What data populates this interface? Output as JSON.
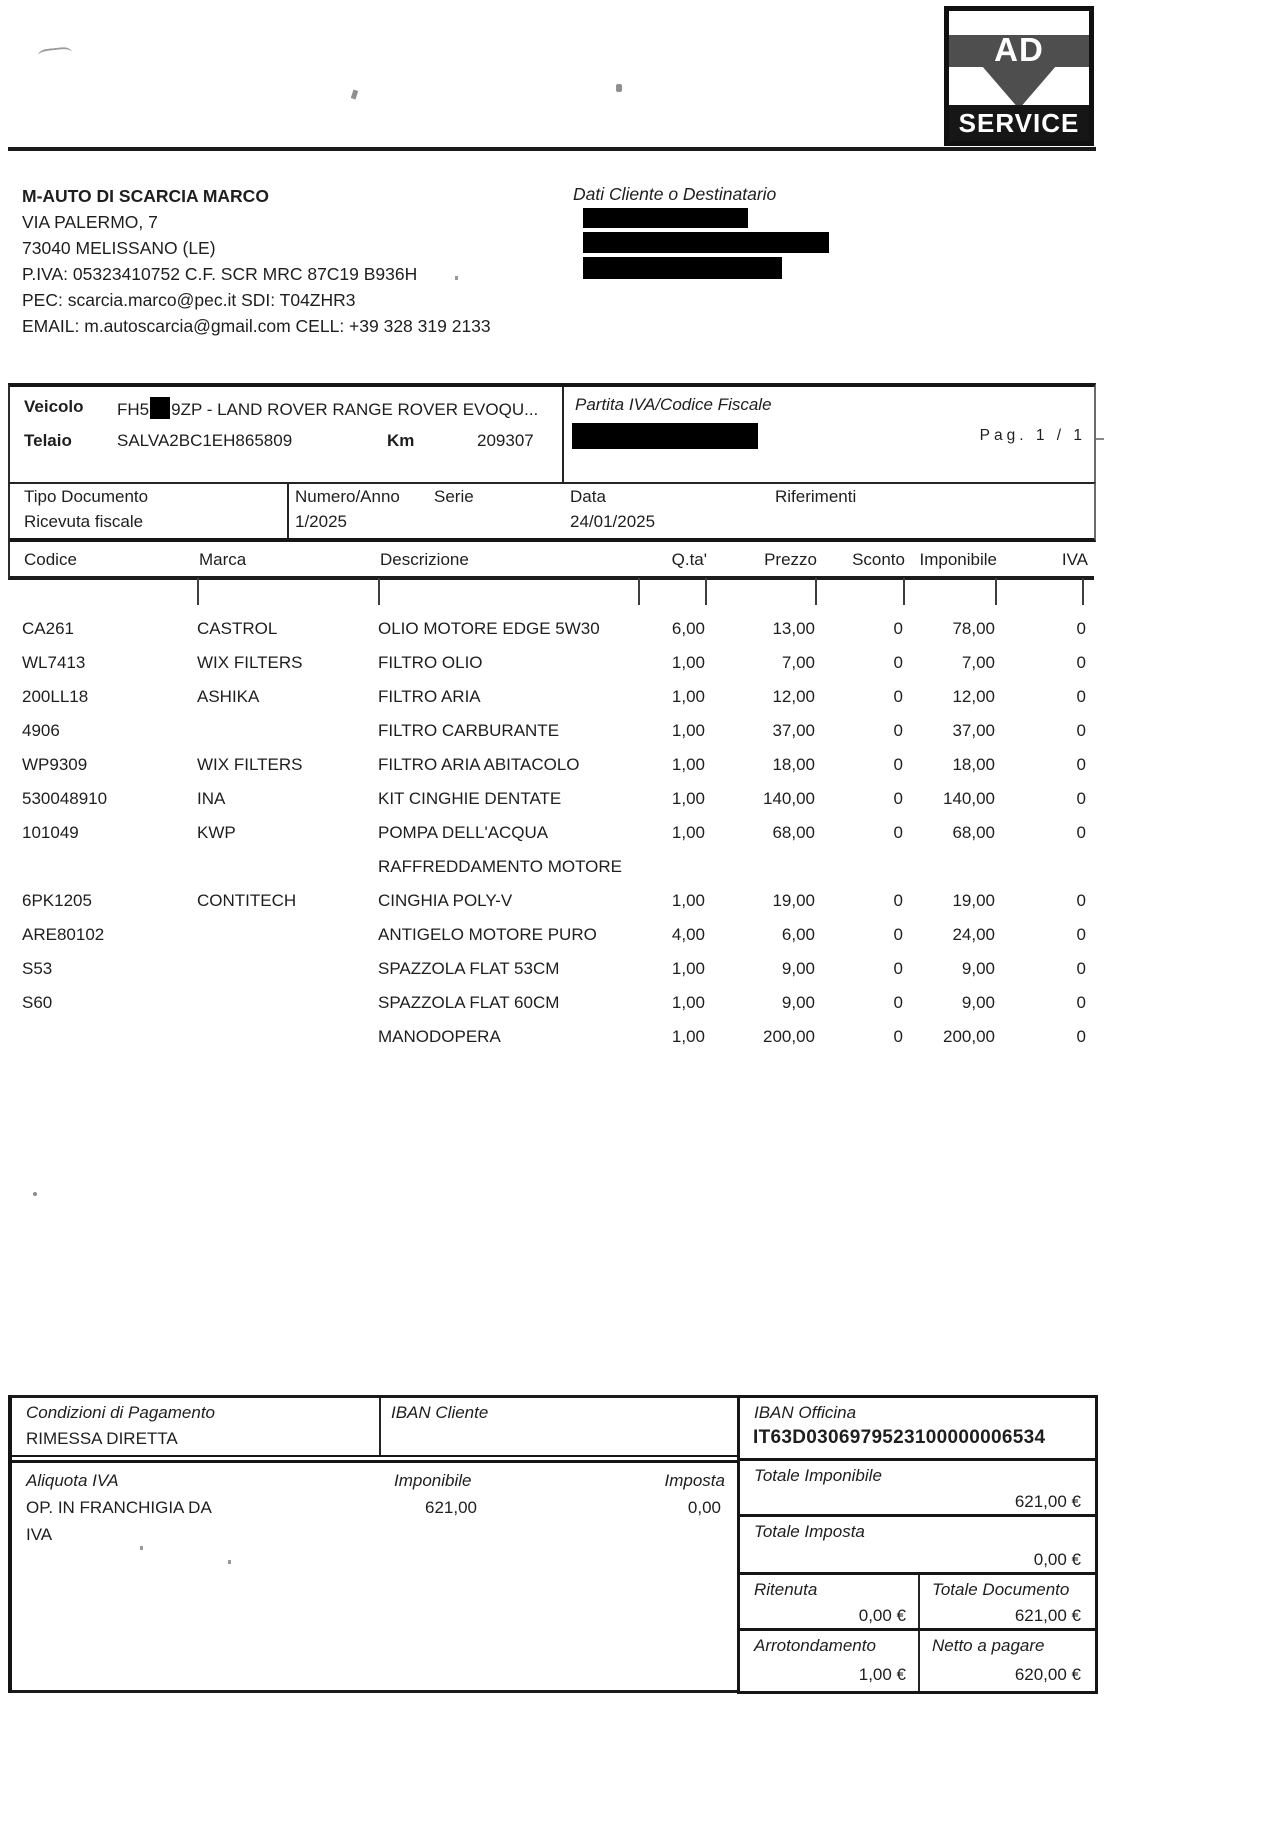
{
  "logo": {
    "ad": "AD",
    "service": "SERVICE"
  },
  "seller": {
    "name": "M-AUTO DI SCARCIA MARCO",
    "lines": [
      "VIA PALERMO, 7",
      "73040 MELISSANO (LE)",
      "P.IVA: 05323410752 C.F. SCR MRC 87C19 B936H",
      "PEC: scarcia.marco@pec.it SDI: T04ZHR3",
      "EMAIL: m.autoscarcia@gmail.com CELL: +39 328 319 2133"
    ]
  },
  "client": {
    "title": "Dati Cliente o Destinatario"
  },
  "vehicle": {
    "veicolo_label": "Veicolo",
    "plate_prefix": "FH5",
    "plate_suffix": "9ZP - LAND ROVER RANGE ROVER EVOQU...",
    "telaio_label": "Telaio",
    "telaio_value": "SALVA2BC1EH865809",
    "km_label": "Km",
    "km_value": "209307",
    "piva_label": "Partita IVA/Codice Fiscale",
    "page_indicator": "Pag. 1 / 1"
  },
  "doc": {
    "tipo_label": "Tipo Documento",
    "tipo_value": "Ricevuta fiscale",
    "numero_label": "Numero/Anno",
    "numero_value": "1/2025",
    "serie_label": "Serie",
    "data_label": "Data",
    "data_value": "24/01/2025",
    "riferimenti_label": "Riferimenti"
  },
  "items": {
    "headers": [
      "Codice",
      "Marca",
      "Descrizione",
      "Q.ta'",
      "Prezzo",
      "Sconto",
      "Imponibile",
      "IVA"
    ],
    "rows": [
      [
        "CA261",
        "CASTROL",
        "OLIO MOTORE EDGE 5W30",
        "6,00",
        "13,00",
        "0",
        "78,00",
        "0"
      ],
      [
        "WL7413",
        "WIX FILTERS",
        "FILTRO OLIO",
        "1,00",
        "7,00",
        "0",
        "7,00",
        "0"
      ],
      [
        "200LL18",
        "ASHIKA",
        "FILTRO ARIA",
        "1,00",
        "12,00",
        "0",
        "12,00",
        "0"
      ],
      [
        "4906",
        "",
        "FILTRO CARBURANTE",
        "1,00",
        "37,00",
        "0",
        "37,00",
        "0"
      ],
      [
        "WP9309",
        "WIX FILTERS",
        "FILTRO ARIA ABITACOLO",
        "1,00",
        "18,00",
        "0",
        "18,00",
        "0"
      ],
      [
        "530048910",
        "INA",
        "KIT CINGHIE DENTATE",
        "1,00",
        "140,00",
        "0",
        "140,00",
        "0"
      ],
      [
        "101049",
        "KWP",
        "POMPA DELL'ACQUA\nRAFFREDDAMENTO MOTORE",
        "1,00",
        "68,00",
        "0",
        "68,00",
        "0"
      ],
      [
        "6PK1205",
        "CONTITECH",
        "CINGHIA POLY-V",
        "1,00",
        "19,00",
        "0",
        "19,00",
        "0"
      ],
      [
        "ARE80102",
        "",
        "ANTIGELO MOTORE PURO",
        "4,00",
        "6,00",
        "0",
        "24,00",
        "0"
      ],
      [
        "S53",
        "",
        "SPAZZOLA FLAT 53CM",
        "1,00",
        "9,00",
        "0",
        "9,00",
        "0"
      ],
      [
        "S60",
        "",
        "SPAZZOLA FLAT 60CM",
        "1,00",
        "9,00",
        "0",
        "9,00",
        "0"
      ],
      [
        "",
        "",
        "MANODOPERA",
        "1,00",
        "200,00",
        "0",
        "200,00",
        "0"
      ]
    ]
  },
  "payment": {
    "condizioni_label": "Condizioni di Pagamento",
    "condizioni_value": "RIMESSA DIRETTA",
    "iban_cliente_label": "IBAN Cliente",
    "iban_officina_label": "IBAN Officina",
    "iban_officina_value": "IT63D0306979523100000006534",
    "aliquota_label": "Aliquota IVA",
    "aliquota_value_line1": "OP. IN FRANCHIGIA DA",
    "aliquota_value_line2": "IVA",
    "imponibile_label": "Imponibile",
    "imponibile_value": "621,00",
    "imposta_label": "Imposta",
    "imposta_value": "0,00"
  },
  "totals": {
    "tot_imponibile_label": "Totale Imponibile",
    "tot_imponibile_value": "621,00 €",
    "tot_imposta_label": "Totale Imposta",
    "tot_imposta_value": "0,00 €",
    "ritenuta_label": "Ritenuta",
    "ritenuta_value": "0,00 €",
    "tot_documento_label": "Totale Documento",
    "tot_documento_value": "621,00 €",
    "arrotondamento_label": "Arrotondamento",
    "arrotondamento_value": "1,00 €",
    "netto_label": "Netto a pagare",
    "netto_value": "620,00 €"
  }
}
